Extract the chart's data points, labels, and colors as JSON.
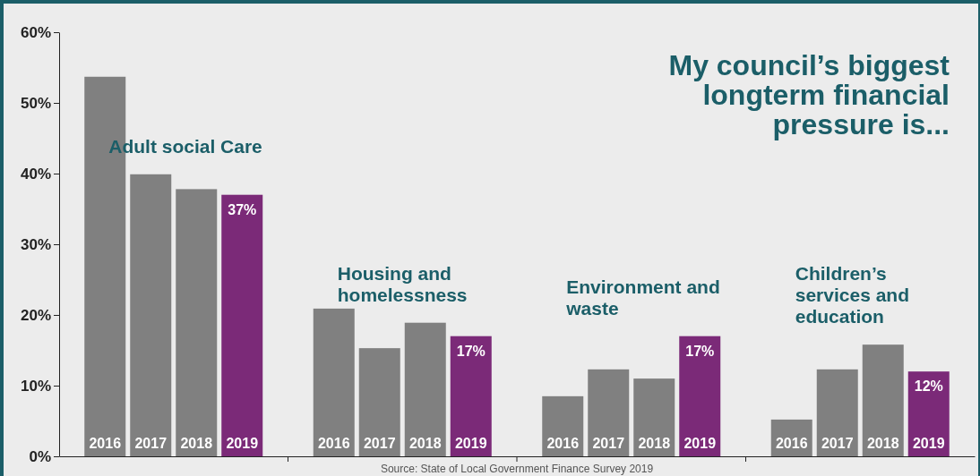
{
  "chart_data": {
    "type": "bar",
    "title": "My council’s biggest longterm financial pressure is...",
    "categories": [
      "Adult social Care",
      "Housing and homelessness",
      "Environment and waste",
      "Children’s services and education"
    ],
    "series": [
      {
        "name": "2016",
        "color": "#808080",
        "values": [
          53.7,
          20.9,
          8.5,
          5.2
        ]
      },
      {
        "name": "2017",
        "color": "#808080",
        "values": [
          39.9,
          15.3,
          12.3,
          12.3
        ]
      },
      {
        "name": "2018",
        "color": "#808080",
        "values": [
          37.8,
          18.9,
          11,
          15.8
        ]
      },
      {
        "name": "2019",
        "color": "#7b2a78",
        "values": [
          37,
          17,
          17,
          12
        ],
        "value_labels": [
          "37%",
          "17%",
          "17%",
          "12%"
        ]
      }
    ],
    "ylim": [
      0,
      60
    ],
    "yticks": [
      {
        "value": 0,
        "label": "0%"
      },
      {
        "value": 10,
        "label": "10%"
      },
      {
        "value": 20,
        "label": "20%"
      },
      {
        "value": 30,
        "label": "30%"
      },
      {
        "value": 40,
        "label": "40%"
      },
      {
        "value": 50,
        "label": "50%"
      },
      {
        "value": 60,
        "label": "60%"
      }
    ],
    "annotations": [
      "Source: State of Local Government Finance Survey 2019"
    ]
  }
}
